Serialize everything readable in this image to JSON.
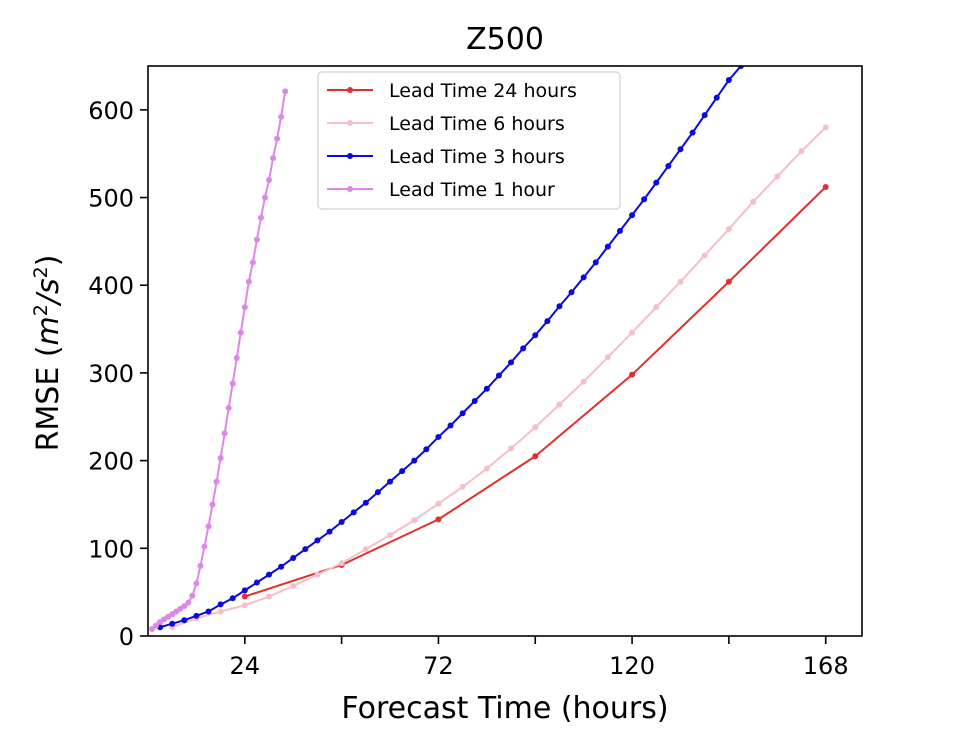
{
  "chart_data": {
    "type": "line",
    "title": "Z500",
    "xlabel": "Forecast Time (hours)",
    "ylabel_main": "RMSE (",
    "ylabel_unit_m": "m",
    "ylabel_unit_exp1": "2",
    "ylabel_unit_slash": "/s",
    "ylabel_unit_exp2": "2",
    "ylabel_close": ")",
    "xlim": [
      0,
      177
    ],
    "ylim": [
      0,
      650
    ],
    "xticks": [
      24,
      48,
      72,
      96,
      120,
      144,
      168
    ],
    "xtick_labels": [
      "24",
      "",
      "72",
      "",
      "120",
      "",
      "168"
    ],
    "yticks": [
      0,
      100,
      200,
      300,
      400,
      500,
      600
    ],
    "ytick_labels": [
      "0",
      "100",
      "200",
      "300",
      "400",
      "500",
      "600"
    ],
    "legend_position": "upper-center",
    "series": [
      {
        "name": "Lead Time 24 hours",
        "color": "#e3302b",
        "x": [
          24,
          48,
          72,
          96,
          120,
          144,
          168
        ],
        "y": [
          45,
          81,
          133,
          205,
          298,
          404,
          512
        ]
      },
      {
        "name": "Lead Time 6 hours",
        "color": "#f4bfc8",
        "x": [
          6,
          12,
          18,
          24,
          30,
          36,
          42,
          48,
          54,
          60,
          66,
          72,
          78,
          84,
          90,
          96,
          102,
          108,
          114,
          120,
          126,
          132,
          138,
          144,
          150,
          156,
          162,
          168
        ],
        "y": [
          10,
          20,
          28,
          35,
          45,
          57,
          70,
          83,
          99,
          115,
          132,
          151,
          170,
          191,
          214,
          238,
          264,
          290,
          318,
          346,
          375,
          404,
          434,
          464,
          495,
          524,
          553,
          580
        ]
      },
      {
        "name": "Lead Time 3 hours",
        "color": "#0a0adb",
        "x": [
          3,
          6,
          9,
          12,
          15,
          18,
          21,
          24,
          27,
          30,
          33,
          36,
          39,
          42,
          45,
          48,
          51,
          54,
          57,
          60,
          63,
          66,
          69,
          72,
          75,
          78,
          81,
          84,
          87,
          90,
          93,
          96,
          99,
          102,
          105,
          108,
          111,
          114,
          117,
          120,
          123,
          126,
          129,
          132,
          135,
          138,
          141,
          144,
          147
        ],
        "y": [
          10,
          14,
          18,
          23,
          28,
          36,
          43,
          52,
          61,
          70,
          79,
          89,
          99,
          109,
          119,
          130,
          141,
          152,
          164,
          176,
          188,
          200,
          213,
          227,
          240,
          254,
          268,
          282,
          297,
          312,
          328,
          343,
          359,
          376,
          392,
          409,
          426,
          444,
          462,
          480,
          498,
          517,
          536,
          555,
          574,
          594,
          614,
          634,
          650
        ]
      },
      {
        "name": "Lead Time 1 hour",
        "color": "#dd88e8",
        "x": [
          1,
          2,
          3,
          4,
          5,
          6,
          7,
          8,
          9,
          10,
          11,
          12,
          13,
          14,
          15,
          16,
          17,
          18,
          19,
          20,
          21,
          22,
          23,
          24,
          25,
          26,
          27,
          28,
          29,
          30,
          31,
          32,
          33,
          34
        ],
        "y": [
          8,
          12,
          16,
          19,
          22,
          25,
          28,
          31,
          34,
          38,
          46,
          60,
          80,
          102,
          125,
          150,
          176,
          203,
          231,
          260,
          288,
          317,
          346,
          375,
          404,
          426,
          452,
          477,
          500,
          520,
          545,
          567,
          592,
          621
        ]
      }
    ]
  }
}
